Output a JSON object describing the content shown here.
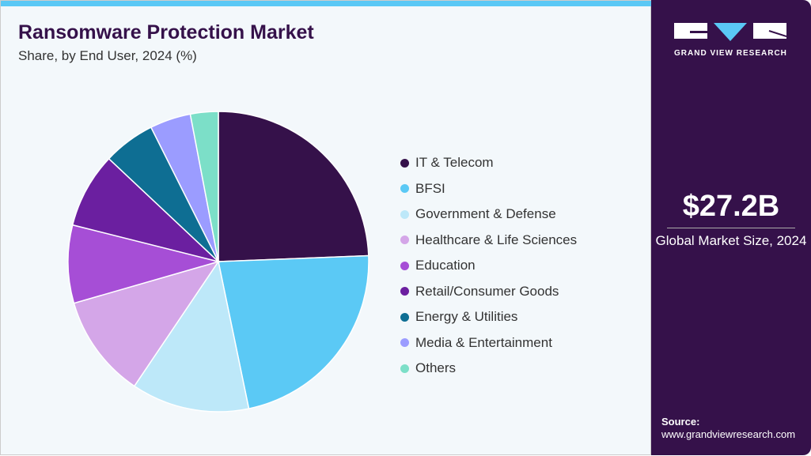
{
  "title": "Ransomware Protection Market",
  "subtitle": "Share, by End User, 2024 (%)",
  "brand": {
    "name": "GRAND VIEW RESEARCH"
  },
  "kpi": {
    "value": "$27.2B",
    "label": "Global Market Size, 2024"
  },
  "source": {
    "label": "Source:",
    "url": "www.grandviewresearch.com"
  },
  "chart_data": {
    "type": "pie",
    "title": "Ransomware Protection Market",
    "subtitle": "Share, by End User, 2024 (%)",
    "legend": "right",
    "start": "12 o'clock, clockwise",
    "categories": [
      "IT & Telecom",
      "BFSI",
      "Government & Defense",
      "Healthcare & Life Sciences",
      "Education",
      "Retail/Consumer Goods",
      "Energy & Utilities",
      "Media & Entertainment",
      "Others"
    ],
    "values": [
      24.4,
      22.4,
      12.7,
      11.1,
      8.4,
      8.1,
      5.6,
      4.4,
      3.0
    ],
    "colors": [
      "#35114a",
      "#5bc9f5",
      "#bde8f9",
      "#d4a6e8",
      "#a64ed6",
      "#6b1fa0",
      "#0e6e93",
      "#9b9cff",
      "#7cdfc8"
    ]
  }
}
